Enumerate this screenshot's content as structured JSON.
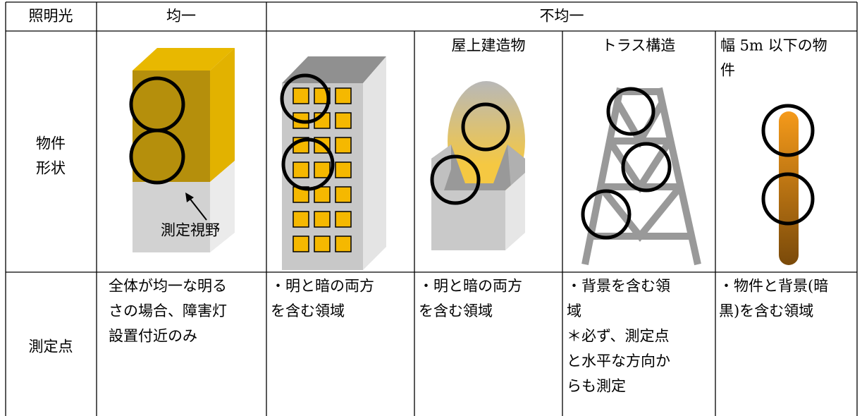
{
  "header": {
    "lighting": "照明光",
    "uniform": "均一",
    "nonuniform": "不均一"
  },
  "shape_row": {
    "label": [
      "物件",
      "形状"
    ],
    "fov_label": "測定視野",
    "rooftop": "屋上建造物",
    "truss": "トラス構造",
    "narrow": [
      "幅 5m 以下の物",
      "件"
    ]
  },
  "point_row": {
    "label": "測定点",
    "uniform": [
      "全体が均一な明る",
      "さの場合、障害灯",
      "設置付近のみ"
    ],
    "building": [
      "・明と暗の両方",
      "を含む領域"
    ],
    "rooftop": [
      "・明と暗の両方",
      "を含む領域"
    ],
    "truss": [
      "・背景を含む領",
      "域",
      "＊必ず、測定点",
      "と水平な方向か",
      "らも測定"
    ],
    "narrow": [
      "・物件と背景(暗",
      "黒)を含む領域"
    ]
  }
}
